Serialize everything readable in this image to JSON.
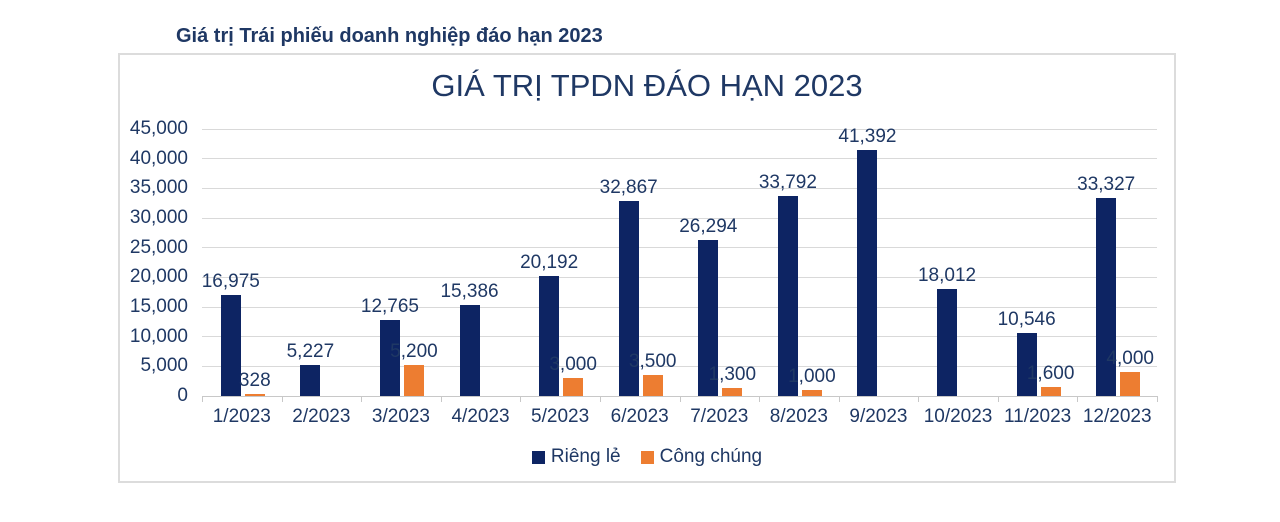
{
  "page": {
    "heading": "Giá trị Trái phiếu doanh nghiệp đáo hạn 2023"
  },
  "chart_data": {
    "type": "bar",
    "title": "GIÁ TRỊ TPDN ĐÁO HẠN 2023",
    "categories": [
      "1/2023",
      "2/2023",
      "3/2023",
      "4/2023",
      "5/2023",
      "6/2023",
      "7/2023",
      "8/2023",
      "9/2023",
      "10/2023",
      "11/2023",
      "12/2023"
    ],
    "series": [
      {
        "name": "Riêng lẻ",
        "color": "#0d2463",
        "values": [
          16975,
          5227,
          12765,
          15386,
          20192,
          32867,
          26294,
          33792,
          41392,
          18012,
          10546,
          33327
        ]
      },
      {
        "name": "Công chúng",
        "color": "#ed7d31",
        "values": [
          328,
          null,
          5200,
          null,
          3000,
          3500,
          1300,
          1000,
          null,
          null,
          1600,
          4000
        ]
      }
    ],
    "ylim": [
      0,
      45000
    ],
    "ytick_step": 5000,
    "grid": true,
    "legend_position": "bottom",
    "data_labels": true,
    "colors": {
      "text": "#1f3864",
      "gridline": "#d9d9d9",
      "frame_border": "#dcdcdc"
    }
  }
}
